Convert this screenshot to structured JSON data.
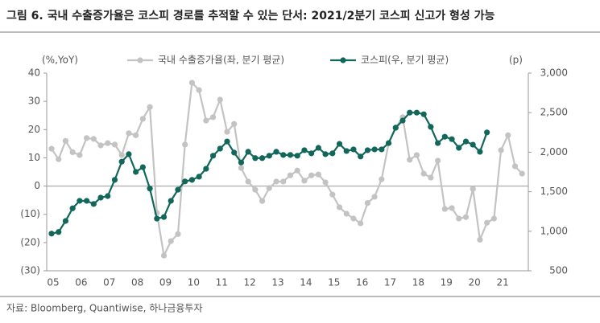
{
  "chart_data": {
    "type": "line",
    "title": "그림 6. 국내 수출증가율은 코스피 경로를 추적할 수 있는 단서: 2021/2분기 코스피 신고가 형성 가능",
    "ylabel": "(%,YoY)",
    "y2label": "(p)",
    "source": "자료: Bloomberg, Quantiwise, 하나금융투자",
    "categories": [
      "05",
      null,
      null,
      null,
      "06",
      null,
      null,
      null,
      "07",
      null,
      null,
      null,
      "08",
      null,
      null,
      null,
      "09",
      null,
      null,
      null,
      "10",
      null,
      null,
      null,
      "11",
      null,
      null,
      null,
      "12",
      null,
      null,
      null,
      "13",
      null,
      null,
      null,
      "14",
      null,
      null,
      null,
      "15",
      null,
      null,
      null,
      "16",
      null,
      null,
      null,
      "17",
      null,
      null,
      null,
      "18",
      null,
      null,
      null,
      "19",
      null,
      null,
      null,
      "20",
      null,
      null,
      null,
      "21",
      null,
      null,
      null
    ],
    "series": [
      {
        "name": "국내 수출증가율(좌, 분기 평균)",
        "color": "#c3c3c3",
        "axis": "y",
        "values": [
          13.2,
          9.5,
          16,
          12,
          11,
          17,
          16.7,
          14.4,
          15.2,
          14.7,
          11,
          18.7,
          18,
          23.8,
          28,
          -9.5,
          -24.6,
          -19.5,
          -17,
          14.7,
          36.6,
          34,
          23.2,
          24.4,
          30.6,
          19.2,
          22,
          6.4,
          1.6,
          -1.3,
          -5.3,
          -0.7,
          1.6,
          1.6,
          3.8,
          5.5,
          1.9,
          3.8,
          4.1,
          1.3,
          -3,
          -7.5,
          -9.8,
          -11.5,
          -13.2,
          -6,
          -3.8,
          2.4,
          15.2,
          20.6,
          24.4,
          9.3,
          11,
          4.4,
          3,
          9,
          -8.1,
          -7.8,
          -11.5,
          -11,
          -1,
          -19,
          -13,
          -11.5,
          12.7,
          18,
          7,
          4.4
        ]
      },
      {
        "name": "코스피(우, 분기 평균)",
        "color": "#12675b",
        "axis": "y2",
        "values": [
          970,
          990,
          1130,
          1290,
          1385,
          1385,
          1345,
          1425,
          1445,
          1650,
          1880,
          1975,
          1750,
          1810,
          1540,
          1160,
          1180,
          1385,
          1525,
          1630,
          1650,
          1690,
          1790,
          1955,
          2045,
          2135,
          1995,
          1870,
          2005,
          1925,
          1925,
          1955,
          2005,
          1965,
          1965,
          1955,
          2025,
          1985,
          2055,
          1975,
          1985,
          2105,
          2015,
          2035,
          1945,
          2025,
          2035,
          2035,
          2115,
          2310,
          2400,
          2500,
          2500,
          2480,
          2320,
          2115,
          2195,
          2165,
          2055,
          2135,
          2095,
          2005,
          2250,
          null,
          null,
          null,
          null,
          null
        ]
      }
    ],
    "ylim": [
      -30,
      40
    ],
    "yticks": [
      {
        "value": -30,
        "label": "(30)"
      },
      {
        "value": -20,
        "label": "(20)"
      },
      {
        "value": -10,
        "label": "(10)"
      },
      0,
      10,
      20,
      30,
      40
    ],
    "y2lim": [
      500,
      3000
    ],
    "y2ticks": [
      500,
      {
        "value": 1000,
        "label": "1,000"
      },
      {
        "value": 1500,
        "label": "1,500"
      },
      {
        "value": 2000,
        "label": "2,000"
      },
      {
        "value": 2500,
        "label": "2,500"
      },
      {
        "value": 3000,
        "label": "3,000"
      }
    ]
  }
}
